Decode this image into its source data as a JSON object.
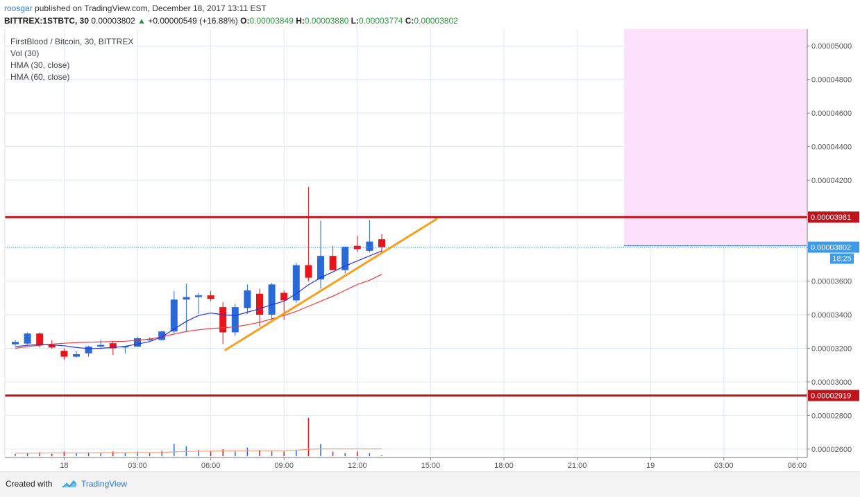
{
  "header": {
    "user": "roosgar",
    "published_text": "published on TradingView.com, December 18, 2017 13:11 EST",
    "symbol": "BITTREX:1STBTC, 30",
    "last": "0.00003802",
    "change": "+0.00000549 (+16.88%)",
    "o_label": "O:",
    "o_value": "0.00003849",
    "h_label": "H:",
    "h_value": "0.00003880",
    "l_label": "L:",
    "l_value": "0.00003774",
    "c_label": "C:",
    "c_value": "0.00003802"
  },
  "legend": {
    "title": "FirstBlood / Bitcoin, 30, BITTREX",
    "vol": "Vol (30)",
    "hma30": "HMA (30, close)",
    "hma60": "HMA (60, close)"
  },
  "footer": {
    "created": "Created with",
    "brand": "TradingView"
  },
  "colors": {
    "up": "#2a6ad8",
    "down": "#e8141a",
    "grid": "#dce9f5",
    "resistance": "#c0121a",
    "trend": "#f5a11f",
    "hma_fast": "#2733e0",
    "hma_slow": "#ef3b3b",
    "zone": "#fde0fb",
    "current": "#3d9bea",
    "vol_ma": "#f7a07a"
  },
  "chart_data": {
    "type": "candlestick",
    "interval": "30",
    "ylim": [
      2.55e-05,
      5.1e-05
    ],
    "y_ticks": [
      "0.00002600",
      "0.00002800",
      "0.00003000",
      "0.00003200",
      "0.00003400",
      "0.00003600",
      "0.00003800",
      "0.00004000",
      "0.00004200",
      "0.00004400",
      "0.00004600",
      "0.00004800",
      "0.00005000"
    ],
    "x_ticks": [
      "18",
      "03:00",
      "06:00",
      "09:00",
      "12:00",
      "15:00",
      "18:00",
      "21:00",
      "19",
      "03:00",
      "06:00"
    ],
    "candles": [
      {
        "o": 3.224e-05,
        "h": 3.25e-05,
        "l": 3.215e-05,
        "c": 3.238e-05
      },
      {
        "o": 3.228e-05,
        "h": 3.295e-05,
        "l": 3.222e-05,
        "c": 3.288e-05
      },
      {
        "o": 3.288e-05,
        "h": 3.295e-05,
        "l": 3.205e-05,
        "c": 3.218e-05
      },
      {
        "o": 3.222e-05,
        "h": 3.248e-05,
        "l": 3.198e-05,
        "c": 3.205e-05
      },
      {
        "o": 3.185e-05,
        "h": 3.2e-05,
        "l": 3.13e-05,
        "c": 3.15e-05
      },
      {
        "o": 3.15e-05,
        "h": 3.185e-05,
        "l": 3.145e-05,
        "c": 3.165e-05
      },
      {
        "o": 3.17e-05,
        "h": 3.215e-05,
        "l": 3.15e-05,
        "c": 3.21e-05
      },
      {
        "o": 3.21e-05,
        "h": 3.25e-05,
        "l": 3.2e-05,
        "c": 3.22e-05
      },
      {
        "o": 3.23e-05,
        "h": 3.245e-05,
        "l": 3.16e-05,
        "c": 3.2e-05
      },
      {
        "o": 3.205e-05,
        "h": 3.215e-05,
        "l": 3.17e-05,
        "c": 3.212e-05
      },
      {
        "o": 3.21e-05,
        "h": 3.27e-05,
        "l": 3.208e-05,
        "c": 3.26e-05
      },
      {
        "o": 3.25e-05,
        "h": 3.265e-05,
        "l": 3.245e-05,
        "c": 3.255e-05
      },
      {
        "o": 3.25e-05,
        "h": 3.305e-05,
        "l": 3.245e-05,
        "c": 3.3e-05
      },
      {
        "o": 3.3e-05,
        "h": 3.54e-05,
        "l": 3.29e-05,
        "c": 3.49e-05
      },
      {
        "o": 3.49e-05,
        "h": 3.585e-05,
        "l": 3.3e-05,
        "c": 3.505e-05
      },
      {
        "o": 3.505e-05,
        "h": 3.53e-05,
        "l": 3.405e-05,
        "c": 3.515e-05
      },
      {
        "o": 3.515e-05,
        "h": 3.54e-05,
        "l": 3.48e-05,
        "c": 3.495e-05
      },
      {
        "o": 3.445e-05,
        "h": 3.475e-05,
        "l": 3.225e-05,
        "c": 3.295e-05
      },
      {
        "o": 3.295e-05,
        "h": 3.465e-05,
        "l": 3.275e-05,
        "c": 3.445e-05
      },
      {
        "o": 3.44e-05,
        "h": 3.58e-05,
        "l": 3.405e-05,
        "c": 3.545e-05
      },
      {
        "o": 3.525e-05,
        "h": 3.555e-05,
        "l": 3.33e-05,
        "c": 3.4e-05
      },
      {
        "o": 3.4e-05,
        "h": 3.59e-05,
        "l": 3.37e-05,
        "c": 3.58e-05
      },
      {
        "o": 3.53e-05,
        "h": 3.545e-05,
        "l": 3.37e-05,
        "c": 3.485e-05
      },
      {
        "o": 3.485e-05,
        "h": 3.71e-05,
        "l": 3.47e-05,
        "c": 3.695e-05
      },
      {
        "o": 3.695e-05,
        "h": 4.16e-05,
        "l": 3.6e-05,
        "c": 3.62e-05
      },
      {
        "o": 3.61e-05,
        "h": 3.96e-05,
        "l": 3.555e-05,
        "c": 3.75e-05
      },
      {
        "o": 3.75e-05,
        "h": 3.81e-05,
        "l": 3.67e-05,
        "c": 3.665e-05
      },
      {
        "o": 3.665e-05,
        "h": 3.8e-05,
        "l": 3.645e-05,
        "c": 3.805e-05
      },
      {
        "o": 3.81e-05,
        "h": 3.87e-05,
        "l": 3.775e-05,
        "c": 3.79e-05
      },
      {
        "o": 3.78e-05,
        "h": 3.965e-05,
        "l": 3.77e-05,
        "c": 3.835e-05
      },
      {
        "o": 3.849e-05,
        "h": 3.88e-05,
        "l": 3.774e-05,
        "c": 3.802e-05
      }
    ],
    "hma_30": [
      3.21e-05,
      3.218e-05,
      3.222e-05,
      3.22e-05,
      3.215e-05,
      3.205e-05,
      3.198e-05,
      3.2e-05,
      3.205e-05,
      3.212e-05,
      3.225e-05,
      3.24e-05,
      3.268e-05,
      3.315e-05,
      3.36e-05,
      3.395e-05,
      3.41e-05,
      3.4e-05,
      3.395e-05,
      3.415e-05,
      3.435e-05,
      3.46e-05,
      3.48e-05,
      3.525e-05,
      3.578e-05,
      3.62e-05,
      3.655e-05,
      3.69e-05,
      3.72e-05,
      3.75e-05,
      3.78e-05
    ],
    "hma_60": [
      3.2e-05,
      3.21e-05,
      3.218e-05,
      3.225e-05,
      3.23e-05,
      3.234e-05,
      3.236e-05,
      3.238e-05,
      3.24e-05,
      3.242e-05,
      3.248e-05,
      3.255e-05,
      3.268e-05,
      3.285e-05,
      3.3e-05,
      3.31e-05,
      3.318e-05,
      3.322e-05,
      3.328e-05,
      3.34e-05,
      3.355e-05,
      3.375e-05,
      3.395e-05,
      3.42e-05,
      3.45e-05,
      3.48e-05,
      3.51e-05,
      3.545e-05,
      3.58e-05,
      3.605e-05,
      3.64e-05
    ],
    "volume": [
      0.15,
      0.2,
      0.25,
      0.15,
      0.3,
      0.2,
      0.25,
      0.2,
      0.3,
      0.25,
      0.3,
      0.2,
      0.35,
      0.8,
      0.65,
      0.4,
      0.3,
      0.45,
      0.3,
      0.55,
      0.4,
      0.35,
      0.3,
      0.4,
      2.5,
      0.8,
      0.3,
      0.2,
      0.3,
      0.2,
      0.05
    ],
    "volume_ma": [
      0.2,
      0.2,
      0.2,
      0.21,
      0.21,
      0.21,
      0.21,
      0.22,
      0.22,
      0.22,
      0.23,
      0.23,
      0.24,
      0.28,
      0.31,
      0.32,
      0.33,
      0.34,
      0.34,
      0.35,
      0.35,
      0.35,
      0.36,
      0.38,
      0.45,
      0.47,
      0.47,
      0.47,
      0.47,
      0.47,
      0.47
    ],
    "resistance_level": "0.00003981",
    "support_level": "0.00002919",
    "current_price": "0.00003802",
    "countdown": "18:25",
    "trendline": {
      "from_bar": 17.2,
      "from_price": 3.19e-05,
      "to_bar": 34.5,
      "to_price": 3.97e-05
    }
  }
}
